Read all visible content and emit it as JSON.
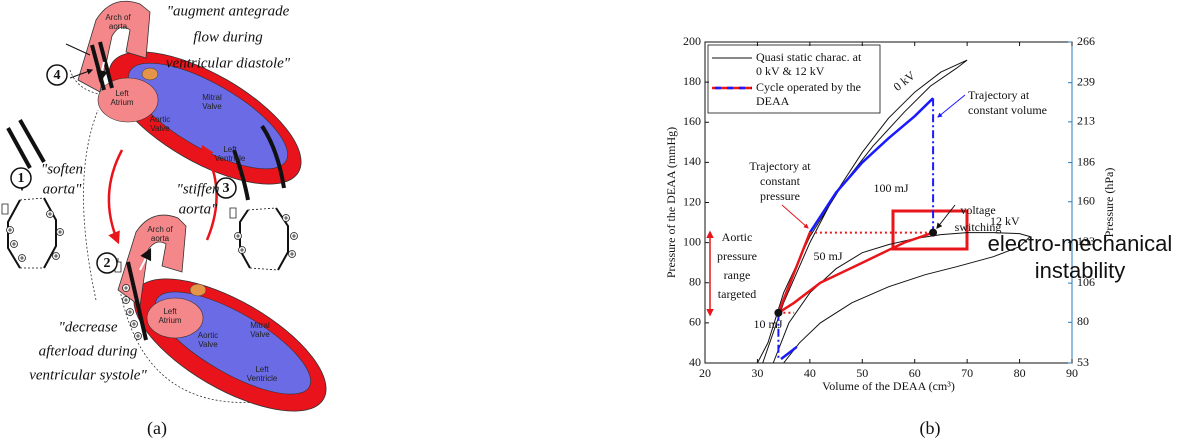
{
  "diagram": {
    "quotes": [
      [
        "\"augment antegrade",
        "flow during",
        "ventricular diastole\""
      ],
      [
        "\"soften",
        "aorta\""
      ],
      [
        "\"stiffen",
        "aorta\""
      ],
      [
        "\"decrease",
        "afterload during",
        "ventricular systole\""
      ]
    ],
    "steps": [
      "1",
      "2",
      "3",
      "4"
    ],
    "hearts": [
      {
        "arch": [
          "Arch of",
          "aorta"
        ],
        "atrium": [
          "Left",
          "Atrium"
        ],
        "mitral": [
          "Mitral",
          "Valve"
        ],
        "aortic": [
          "Aortic",
          "Valve"
        ],
        "ventricle": [
          "Left",
          "Ventricle"
        ]
      },
      {
        "arch": [
          "Arch of",
          "aorta"
        ],
        "atrium": [
          "Left",
          "Atrium"
        ],
        "mitral": [
          "Mitral",
          "Valve"
        ],
        "aortic": [
          "Aortic",
          "Valve"
        ],
        "ventricle": [
          "Left",
          "Ventricle"
        ]
      }
    ]
  },
  "captions": [
    "(a)",
    "(b)"
  ],
  "chart_data": {
    "type": "line",
    "x_label": "Volume of the DEAA (cm³)",
    "y_label": "Pressure of the DEAA (mmHg)",
    "y2_label": "Pressure (hPa)",
    "xlim": [
      20,
      90
    ],
    "xticks": [
      20,
      30,
      40,
      50,
      60,
      70,
      80,
      90
    ],
    "ylim": [
      40,
      200
    ],
    "yticks": [
      40,
      60,
      80,
      100,
      120,
      140,
      160,
      180,
      200
    ],
    "y2lim": [
      53,
      266
    ],
    "y2ticks": [
      53,
      80,
      106,
      133,
      160,
      186,
      213,
      239,
      266
    ],
    "y2_color": "#2a7ab8",
    "grid": false,
    "legend": "top-left",
    "series": [
      {
        "name": "Quasi static charac. at 0 kV & 12 kV",
        "color": "#111111",
        "width": 1,
        "x": [
          31,
          35,
          40,
          45,
          50,
          55,
          60,
          65,
          70,
          68,
          63,
          58,
          52,
          46,
          40,
          35,
          32,
          30,
          null,
          33,
          36,
          40,
          45,
          50,
          55,
          60,
          65,
          70,
          75,
          80,
          82,
          80,
          75,
          68,
          62,
          55,
          48,
          42,
          38,
          35
        ],
        "values": [
          40,
          70,
          100,
          125,
          145,
          162,
          175,
          185,
          191,
          187,
          178,
          165,
          148,
          128,
          103,
          75,
          50,
          40,
          null,
          40,
          60,
          75,
          87,
          95,
          99,
          102,
          104,
          105,
          105,
          104.5,
          103,
          98,
          93,
          88,
          84,
          78,
          70,
          60,
          50,
          40
        ]
      },
      {
        "name": "Cycle operated by the DEAA",
        "color": "#e8151b",
        "width": 2.5,
        "x": [
          34,
          40,
          null,
          34,
          37,
          42,
          50,
          58,
          63.5
        ],
        "values": [
          65,
          105,
          null,
          65,
          70,
          80,
          90,
          100,
          105
        ]
      },
      {
        "color": "#1a1aff",
        "width": 2.5,
        "x": [
          40,
          45,
          50,
          55,
          60,
          63.5,
          null,
          34.5,
          36,
          37.5
        ],
        "values": [
          105,
          125,
          140,
          152,
          163,
          172,
          null,
          42,
          45,
          48
        ]
      },
      {
        "color": "#1a1aff",
        "width": 2,
        "dash": "dashdot",
        "x": [
          63.5,
          63.5,
          null,
          34,
          34
        ],
        "values": [
          172,
          105,
          null,
          65,
          42
        ]
      },
      {
        "color": "#e8151b",
        "width": 2,
        "dash": "dotted",
        "x": [
          40,
          63.5,
          null,
          34,
          37
        ],
        "values": [
          105,
          105,
          null,
          65,
          65
        ]
      },
      {
        "color": "#111111",
        "style": "points",
        "x": [
          34,
          63.5
        ],
        "values": [
          65,
          105
        ]
      }
    ],
    "annotations": [
      {
        "lines": [
          "0 kV"
        ],
        "color": "#111111"
      },
      {
        "lines": [
          "Trajectory at",
          "constant volume"
        ],
        "color": "#1a1aff"
      },
      {
        "lines": [
          "Trajectory at",
          "constant",
          "pressure"
        ],
        "color": "#e8151b"
      },
      {
        "lines": [
          "100 mJ"
        ],
        "color": "#111111"
      },
      {
        "lines": [
          "voltage",
          "switching"
        ],
        "color": "#111111"
      },
      {
        "lines": [
          "12 kV"
        ],
        "color": "#111111"
      },
      {
        "lines": [
          "electro-mechanical",
          "instability"
        ],
        "color": "#e8151b"
      },
      {
        "lines": [
          "Aortic",
          "pressure",
          "range",
          "targeted"
        ],
        "color": "#e8151b"
      },
      {
        "lines": [
          "50 mJ"
        ],
        "color": "#111111"
      },
      {
        "lines": [
          "10 mJ"
        ],
        "color": "#111111"
      }
    ]
  }
}
